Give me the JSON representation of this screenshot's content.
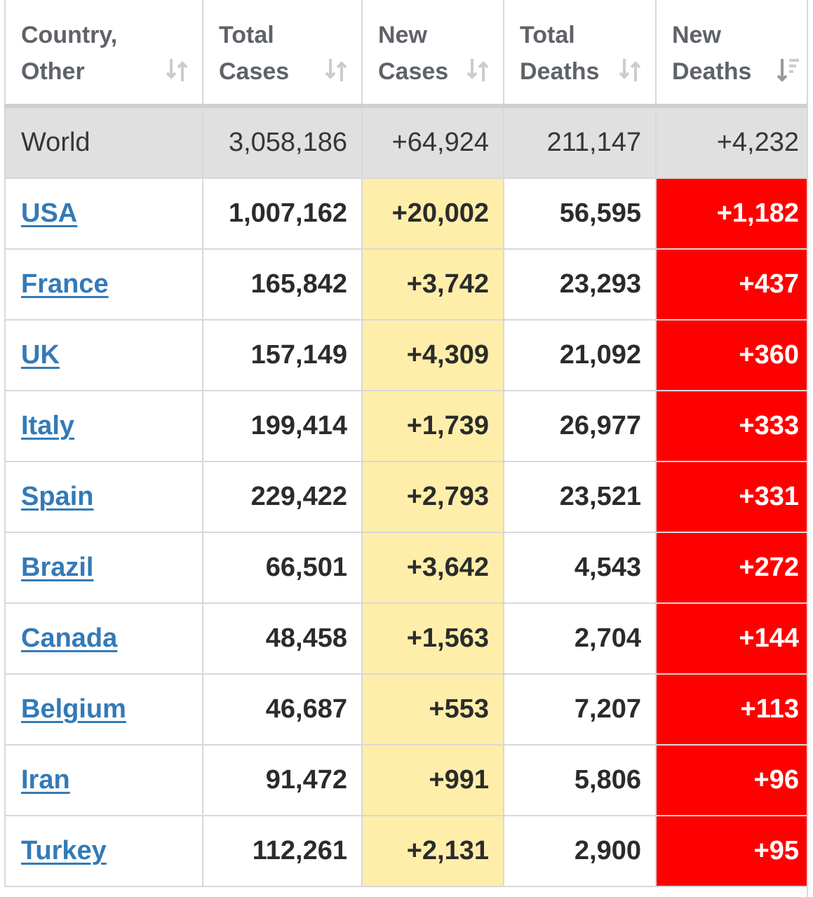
{
  "colors": {
    "header_text": "#5f6368",
    "world_row_bg": "#e0e0e0",
    "new_cases_highlight": "#ffeeaa",
    "new_deaths_highlight": "#ff0000",
    "link": "#337ab7",
    "sort_icon": "#cccccc",
    "sort_icon_active": "#999999"
  },
  "table": {
    "headers": [
      {
        "label": "Country, Other",
        "sort_icon": "sort-arrows-icon"
      },
      {
        "label": "Total Cases",
        "sort_icon": "sort-arrows-icon"
      },
      {
        "label": "New Cases",
        "sort_icon": "sort-arrows-icon"
      },
      {
        "label": "Total Deaths",
        "sort_icon": "sort-arrows-icon"
      },
      {
        "label": "New Deaths",
        "sort_icon": "sort-descending-icon"
      }
    ],
    "world": {
      "name": "World",
      "total_cases": "3,058,186",
      "new_cases": "+64,924",
      "total_deaths": "211,147",
      "new_deaths": "+4,232"
    },
    "rows": [
      {
        "name": "USA",
        "total_cases": "1,007,162",
        "new_cases": "+20,002",
        "total_deaths": "56,595",
        "new_deaths": "+1,182"
      },
      {
        "name": "France",
        "total_cases": "165,842",
        "new_cases": "+3,742",
        "total_deaths": "23,293",
        "new_deaths": "+437"
      },
      {
        "name": "UK",
        "total_cases": "157,149",
        "new_cases": "+4,309",
        "total_deaths": "21,092",
        "new_deaths": "+360"
      },
      {
        "name": "Italy",
        "total_cases": "199,414",
        "new_cases": "+1,739",
        "total_deaths": "26,977",
        "new_deaths": "+333"
      },
      {
        "name": "Spain",
        "total_cases": "229,422",
        "new_cases": "+2,793",
        "total_deaths": "23,521",
        "new_deaths": "+331"
      },
      {
        "name": "Brazil",
        "total_cases": "66,501",
        "new_cases": "+3,642",
        "total_deaths": "4,543",
        "new_deaths": "+272"
      },
      {
        "name": "Canada",
        "total_cases": "48,458",
        "new_cases": "+1,563",
        "total_deaths": "2,704",
        "new_deaths": "+144"
      },
      {
        "name": "Belgium",
        "total_cases": "46,687",
        "new_cases": "+553",
        "total_deaths": "7,207",
        "new_deaths": "+113"
      },
      {
        "name": "Iran",
        "total_cases": "91,472",
        "new_cases": "+991",
        "total_deaths": "5,806",
        "new_deaths": "+96"
      },
      {
        "name": "Turkey",
        "total_cases": "112,261",
        "new_cases": "+2,131",
        "total_deaths": "2,900",
        "new_deaths": "+95"
      }
    ]
  }
}
